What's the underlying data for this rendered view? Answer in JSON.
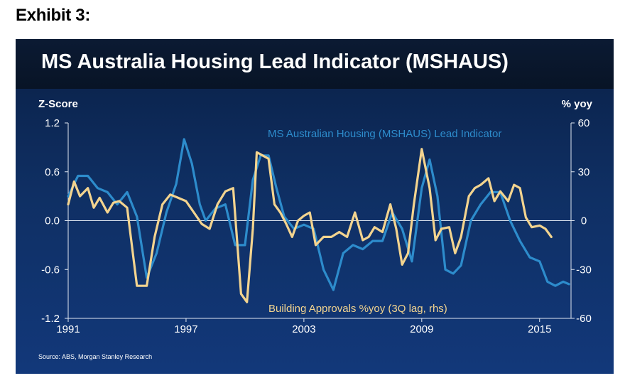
{
  "exhibit_label": "Exhibit 3:",
  "colors": {
    "series_lead": "#2d8ccc",
    "series_approvals": "#f3d48f",
    "axis": "#dfe6f0"
  },
  "chart_data": {
    "type": "line",
    "title": "MS Australia Housing Lead Indicator (MSHAUS)",
    "ylabel_left": "Z-Score",
    "ylabel_right": "% yoy",
    "ylim_left": [
      -1.2,
      1.2
    ],
    "ylim_right": [
      -60,
      60
    ],
    "xlim": [
      1991,
      2016.6
    ],
    "x_ticks": [
      1991,
      1997,
      2003,
      2009,
      2015
    ],
    "x_tick_labels": [
      "1991",
      "1997",
      "2003",
      "2009",
      "2015"
    ],
    "y_left_ticks": [
      1.2,
      0.6,
      0.0,
      -0.6,
      -1.2
    ],
    "y_left_tick_labels": [
      "1.2",
      "0.6",
      "0.0",
      "-0.6",
      "-1.2"
    ],
    "y_right_ticks": [
      60,
      30,
      0,
      -30,
      -60
    ],
    "y_right_tick_labels": [
      "60",
      "30",
      "0",
      "-30",
      "-60"
    ],
    "series": [
      {
        "name": "MS Australian Housing (MSHAUS) Lead Indicator",
        "axis": "left",
        "x": [
          1991.0,
          1991.5,
          1992.0,
          1992.5,
          1993.0,
          1993.5,
          1994.0,
          1994.5,
          1995.0,
          1995.5,
          1996.0,
          1996.5,
          1996.9,
          1997.3,
          1997.7,
          1998.0,
          1998.5,
          1999.0,
          1999.5,
          2000.0,
          2000.4,
          2000.8,
          2001.2,
          2001.6,
          2002.0,
          2002.5,
          2003.0,
          2003.5,
          2004.0,
          2004.5,
          2005.0,
          2005.5,
          2006.0,
          2006.5,
          2007.0,
          2007.5,
          2008.0,
          2008.5,
          2009.0,
          2009.4,
          2009.8,
          2010.2,
          2010.6,
          2011.0,
          2011.5,
          2012.0,
          2012.5,
          2013.0,
          2013.5,
          2014.0,
          2014.5,
          2015.0,
          2015.4,
          2015.8,
          2016.2,
          2016.5
        ],
        "values": [
          0.3,
          0.55,
          0.55,
          0.4,
          0.35,
          0.2,
          0.35,
          0.05,
          -0.7,
          -0.4,
          0.1,
          0.45,
          1.0,
          0.7,
          0.2,
          0.0,
          0.15,
          0.2,
          -0.3,
          -0.3,
          0.5,
          0.8,
          0.8,
          0.4,
          0.05,
          -0.1,
          -0.05,
          -0.1,
          -0.6,
          -0.85,
          -0.4,
          -0.3,
          -0.35,
          -0.25,
          -0.25,
          0.1,
          -0.1,
          -0.5,
          0.4,
          0.75,
          0.3,
          -0.6,
          -0.65,
          -0.55,
          0.0,
          0.2,
          0.35,
          0.35,
          0.0,
          -0.25,
          -0.45,
          -0.5,
          -0.75,
          -0.8,
          -0.75,
          -0.78
        ]
      },
      {
        "name": "Building Approvals %yoy (3Q lag, rhs)",
        "axis": "right",
        "x": [
          1991.0,
          1991.3,
          1991.6,
          1992.0,
          1992.3,
          1992.6,
          1993.0,
          1993.3,
          1993.6,
          1994.0,
          1994.5,
          1995.0,
          1995.4,
          1995.8,
          1996.2,
          1996.6,
          1997.0,
          1997.4,
          1997.8,
          1998.2,
          1998.6,
          1999.0,
          1999.4,
          1999.8,
          2000.1,
          2000.4,
          2000.6,
          2000.9,
          2001.2,
          2001.5,
          2001.8,
          2002.1,
          2002.4,
          2002.7,
          2003.0,
          2003.3,
          2003.6,
          2004.0,
          2004.4,
          2004.8,
          2005.2,
          2005.6,
          2006.0,
          2006.3,
          2006.6,
          2007.0,
          2007.4,
          2007.7,
          2008.0,
          2008.3,
          2008.6,
          2009.0,
          2009.4,
          2009.7,
          2010.0,
          2010.4,
          2010.7,
          2011.0,
          2011.4,
          2011.7,
          2012.0,
          2012.4,
          2012.7,
          2013.0,
          2013.4,
          2013.7,
          2014.0,
          2014.3,
          2014.6,
          2015.0,
          2015.3,
          2015.6
        ],
        "values": [
          10,
          24,
          15,
          20,
          8,
          14,
          5,
          11,
          12,
          8,
          -40,
          -40,
          -10,
          10,
          16,
          14,
          12,
          5,
          -2,
          -5,
          10,
          18,
          20,
          -45,
          -50,
          -5,
          42,
          40,
          38,
          10,
          5,
          -2,
          -10,
          0,
          3,
          5,
          -15,
          -10,
          -10,
          -7,
          -10,
          5,
          -12,
          -10,
          -4,
          -7,
          10,
          -5,
          -27,
          -20,
          10,
          44,
          20,
          -12,
          -5,
          -4,
          -20,
          -10,
          15,
          20,
          22,
          26,
          12,
          18,
          12,
          22,
          20,
          2,
          -4,
          -3,
          -5,
          -10
        ]
      }
    ],
    "annotations": [
      {
        "text": "MS Australian Housing (MSHAUS) Lead Indicator",
        "series": "left"
      },
      {
        "text": "Building Approvals  %yoy (3Q lag, rhs)",
        "series": "right"
      }
    ],
    "source": "Source: ABS,  Morgan Stanley  Research"
  }
}
